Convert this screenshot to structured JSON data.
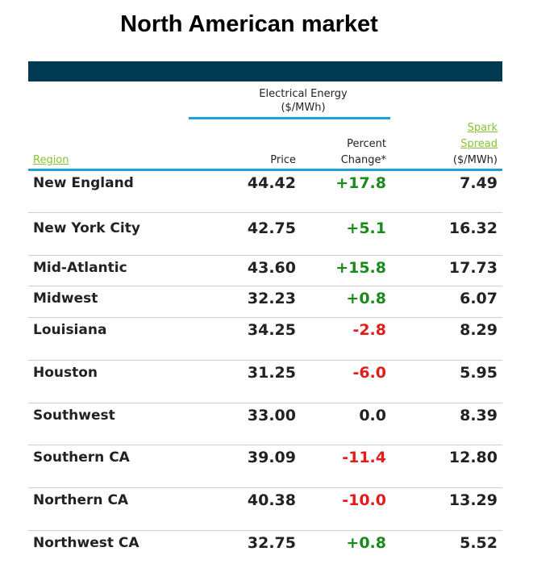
{
  "title": "North American market",
  "header": {
    "group_line1": "Electrical Energy",
    "group_line2": "($/MWh)",
    "region": "Region",
    "price": "Price",
    "pct_line1": "Percent",
    "pct_line2": "Change*",
    "spark_line1": "Spark",
    "spark_line2": "Spread",
    "spark_line3": "($/MWh)"
  },
  "colors": {
    "band": "#003a52",
    "rule": "#1e9fd6",
    "link_green": "#86c232",
    "positive": "#1a8a1a",
    "negative": "#e31b1b",
    "neutral": "#222222"
  },
  "chart_data": {
    "type": "table",
    "title": "North American market",
    "columns": [
      "Region",
      "Price",
      "Percent Change*",
      "Spark Spread ($/MWh)"
    ],
    "rows": [
      {
        "region": "New England",
        "price": "44.42",
        "pct": "+17.8",
        "spark": "7.49"
      },
      {
        "region": "New York City",
        "price": "42.75",
        "pct": "+5.1",
        "spark": "16.32"
      },
      {
        "region": "Mid-Atlantic",
        "price": "43.60",
        "pct": "+15.8",
        "spark": "17.73"
      },
      {
        "region": "Midwest",
        "price": "32.23",
        "pct": "+0.8",
        "spark": "6.07"
      },
      {
        "region": "Louisiana",
        "price": "34.25",
        "pct": "-2.8",
        "spark": "8.29"
      },
      {
        "region": "Houston",
        "price": "31.25",
        "pct": "-6.0",
        "spark": "5.95"
      },
      {
        "region": "Southwest",
        "price": "33.00",
        "pct": "0.0",
        "spark": "8.39"
      },
      {
        "region": "Southern CA",
        "price": "39.09",
        "pct": "-11.4",
        "spark": "12.80"
      },
      {
        "region": "Northern CA",
        "price": "40.38",
        "pct": "-10.0",
        "spark": "13.29"
      },
      {
        "region": "Northwest CA",
        "price": "32.75",
        "pct": "+0.8",
        "spark": "5.52"
      }
    ]
  }
}
